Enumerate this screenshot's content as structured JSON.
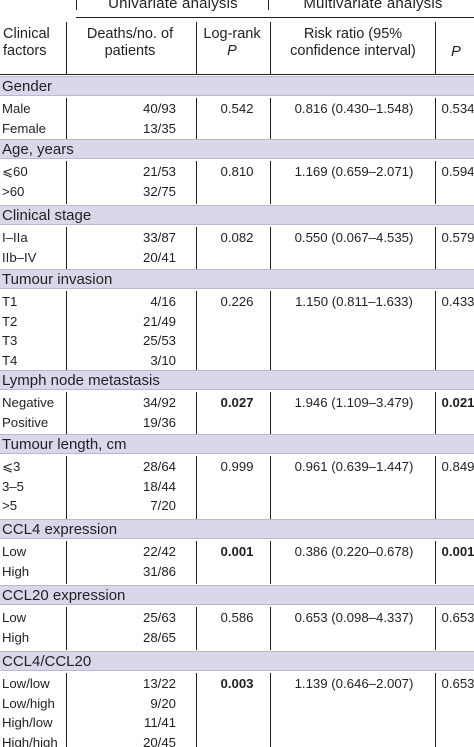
{
  "header": {
    "group_univariate": "Univariate analysis",
    "group_multivariate": "Multivariate analysis",
    "col_factor": "Clinical factors",
    "col_deaths": "Deaths/no. of patients",
    "col_logrank_line1": "Log-rank",
    "col_logrank_line2": "P",
    "col_ratio": "Risk ratio (95% confidence interval)",
    "col_p": "P"
  },
  "sections": [
    {
      "title": "Gender",
      "rows": [
        {
          "label": "Male",
          "deaths": "40/93",
          "logrank": "0.542",
          "ratio": "0.816 (0.430–1.548)",
          "p": "0.534",
          "bold_logrank": false,
          "bold_p": false
        },
        {
          "label": "Female",
          "deaths": "13/35",
          "logrank": "",
          "ratio": "",
          "p": "",
          "bold_logrank": false,
          "bold_p": false
        }
      ]
    },
    {
      "title": "Age, years",
      "rows": [
        {
          "label": "⩽60",
          "deaths": "21/53",
          "logrank": "0.810",
          "ratio": "1.169 (0.659–2.071)",
          "p": "0.594",
          "bold_logrank": false,
          "bold_p": false
        },
        {
          "label": ">60",
          "deaths": "32/75",
          "logrank": "",
          "ratio": "",
          "p": "",
          "bold_logrank": false,
          "bold_p": false
        }
      ]
    },
    {
      "title": "Clinical stage",
      "rows": [
        {
          "label": "I–IIa",
          "deaths": "33/87",
          "logrank": "0.082",
          "ratio": "0.550 (0.067–4.535)",
          "p": "0.579",
          "bold_logrank": false,
          "bold_p": false
        },
        {
          "label": "IIb–IV",
          "deaths": "20/41",
          "logrank": "",
          "ratio": "",
          "p": "",
          "bold_logrank": false,
          "bold_p": false
        }
      ]
    },
    {
      "title": "Tumour invasion",
      "rows": [
        {
          "label": "T1",
          "deaths": "4/16",
          "logrank": "0.226",
          "ratio": "1.150 (0.811–1.633)",
          "p": "0.433",
          "bold_logrank": false,
          "bold_p": false
        },
        {
          "label": "T2",
          "deaths": "21/49",
          "logrank": "",
          "ratio": "",
          "p": "",
          "bold_logrank": false,
          "bold_p": false
        },
        {
          "label": "T3",
          "deaths": "25/53",
          "logrank": "",
          "ratio": "",
          "p": "",
          "bold_logrank": false,
          "bold_p": false
        },
        {
          "label": "T4",
          "deaths": "3/10",
          "logrank": "",
          "ratio": "",
          "p": "",
          "bold_logrank": false,
          "bold_p": false
        }
      ]
    },
    {
      "title": "Lymph node metastasis",
      "rows": [
        {
          "label": "Negative",
          "deaths": "34/92",
          "logrank": "0.027",
          "ratio": "1.946 (1.109–3.479)",
          "p": "0.021",
          "bold_logrank": true,
          "bold_p": true
        },
        {
          "label": "Positive",
          "deaths": "19/36",
          "logrank": "",
          "ratio": "",
          "p": "",
          "bold_logrank": false,
          "bold_p": false
        }
      ]
    },
    {
      "title": "Tumour length, cm",
      "rows": [
        {
          "label": "⩽3",
          "deaths": "28/64",
          "logrank": "0.999",
          "ratio": "0.961 (0.639–1.447)",
          "p": "0.849",
          "bold_logrank": false,
          "bold_p": false
        },
        {
          "label": "3–5",
          "deaths": "18/44",
          "logrank": "",
          "ratio": "",
          "p": "",
          "bold_logrank": false,
          "bold_p": false
        },
        {
          "label": ">5",
          "deaths": "7/20",
          "logrank": "",
          "ratio": "",
          "p": "",
          "bold_logrank": false,
          "bold_p": false
        }
      ]
    },
    {
      "title": "CCL4 expression",
      "rows": [
        {
          "label": "Low",
          "deaths": "22/42",
          "logrank": "0.001",
          "ratio": "0.386 (0.220–0.678)",
          "p": "0.001",
          "bold_logrank": true,
          "bold_p": true
        },
        {
          "label": "High",
          "deaths": "31/86",
          "logrank": "",
          "ratio": "",
          "p": "",
          "bold_logrank": false,
          "bold_p": false
        }
      ]
    },
    {
      "title": "CCL20 expression",
      "rows": [
        {
          "label": "Low",
          "deaths": "25/63",
          "logrank": "0.586",
          "ratio": "0.653 (0.098–4.337)",
          "p": "0.653",
          "bold_logrank": false,
          "bold_p": false
        },
        {
          "label": "High",
          "deaths": "28/65",
          "logrank": "",
          "ratio": "",
          "p": "",
          "bold_logrank": false,
          "bold_p": false
        }
      ]
    },
    {
      "title": "CCL4/CCL20",
      "rows": [
        {
          "label": "Low/low",
          "deaths": "13/22",
          "logrank": "0.003",
          "ratio": "1.139 (0.646–2.007)",
          "p": "0.653",
          "bold_logrank": true,
          "bold_p": false
        },
        {
          "label": "Low/high",
          "deaths": "9/20",
          "logrank": "",
          "ratio": "",
          "p": "",
          "bold_logrank": false,
          "bold_p": false
        },
        {
          "label": "High/low",
          "deaths": "11/41",
          "logrank": "",
          "ratio": "",
          "p": "",
          "bold_logrank": false,
          "bold_p": false
        },
        {
          "label": "High/high",
          "deaths": "20/45",
          "logrank": "",
          "ratio": "",
          "p": "",
          "bold_logrank": false,
          "bold_p": false
        }
      ]
    }
  ]
}
